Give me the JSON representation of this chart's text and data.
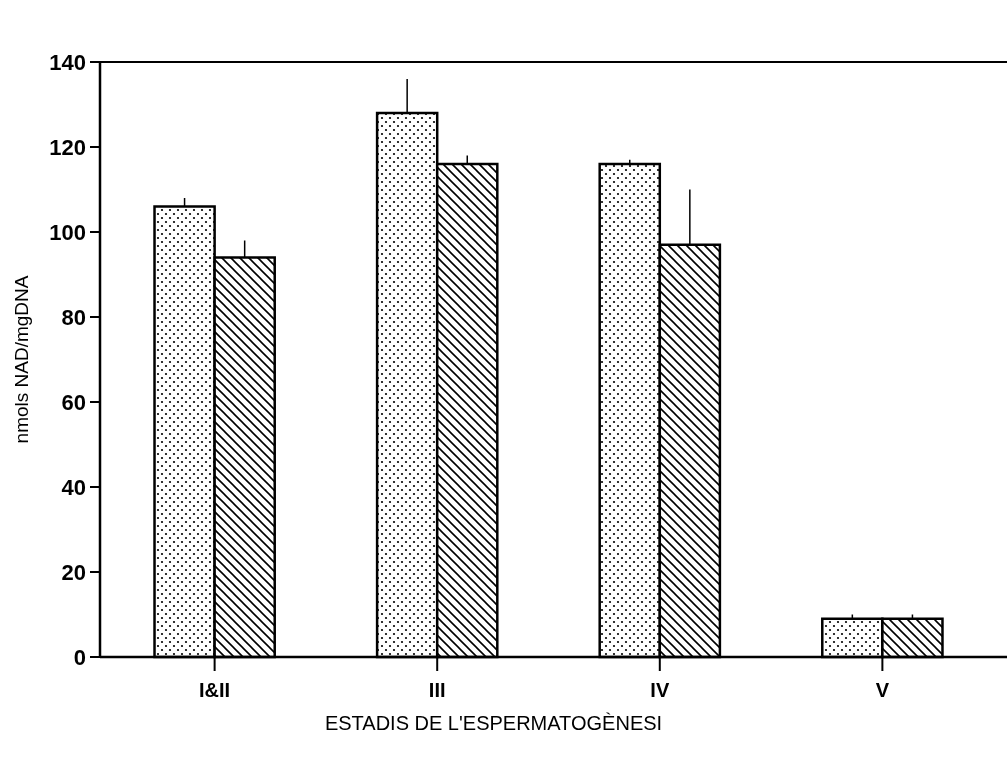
{
  "chart_data": {
    "type": "bar",
    "xlabel": "ESTADIS DE L'ESPERMATOGÈNESI",
    "ylabel": "nmols NAD/mgDNA",
    "categories": [
      "I&II",
      "III",
      "IV",
      "V"
    ],
    "series": [
      {
        "color": "#000000",
        "values": [
          106,
          128,
          116,
          9
        ],
        "errors": [
          [
            106,
            108
          ],
          [
            128,
            136
          ],
          [
            116,
            117
          ],
          [
            9,
            10
          ]
        ]
      },
      {
        "color": "#000000",
        "values": [
          94,
          116,
          97,
          9
        ],
        "errors": [
          [
            94,
            98
          ],
          [
            116,
            118
          ],
          [
            97,
            110
          ],
          [
            9,
            10
          ]
        ]
      }
    ],
    "ylim": [
      0,
      140
    ],
    "yticks": [
      0,
      20,
      40,
      60,
      80,
      100,
      120,
      140
    ],
    "grid": false
  }
}
